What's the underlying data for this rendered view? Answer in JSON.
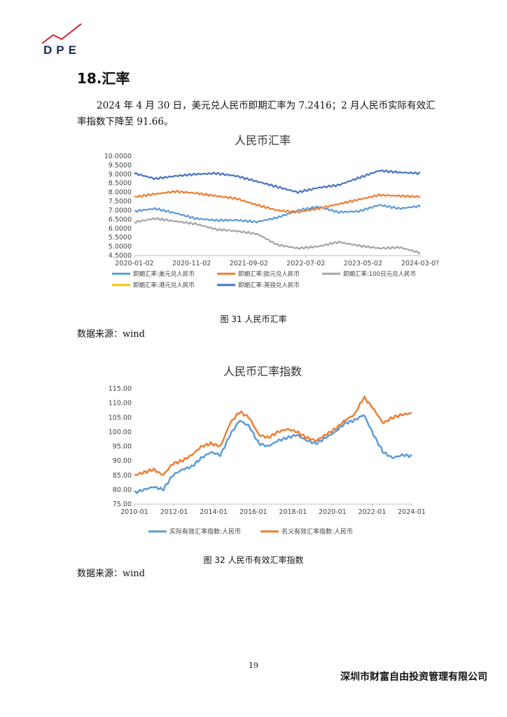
{
  "header": {
    "logo_text": "DPE"
  },
  "section": {
    "title": "18.汇率"
  },
  "paragraph": "2024 年 4 月 30 日，美元兑人民币即期汇率为 7.2416；2 月人民币实际有效汇率指数下降至 91.66。",
  "chart1": {
    "title": "人民币汇率",
    "caption": "图 31 人民币汇率",
    "source": "数据来源：wind"
  },
  "chart2": {
    "title": "人民币汇率指数",
    "caption": "图 32 人民币有效汇率指数",
    "source": "数据来源：wind"
  },
  "footer": {
    "page_number": "19",
    "company": "深圳市财富自由投资管理有限公司"
  },
  "chart_data": [
    {
      "type": "line",
      "title": "人民币汇率",
      "x_ticks": [
        "2020-01-02",
        "2020-11-02",
        "2021-09-02",
        "2022-07-02",
        "2023-05-02",
        "2024-03-0?"
      ],
      "y_ticks": [
        "10.0000",
        "9.5000",
        "9.0000",
        "8.5000",
        "8.0000",
        "7.5000",
        "7.0000",
        "6.5000",
        "6.0000",
        "5.5000",
        "5.0000",
        "4.5000"
      ],
      "ylim": [
        4.5,
        10.0
      ],
      "x_dates": [
        "2020-01",
        "2020-05",
        "2020-09",
        "2021-01",
        "2021-05",
        "2021-09",
        "2022-01",
        "2022-05",
        "2022-09",
        "2022-11",
        "2023-01",
        "2023-05",
        "2023-09",
        "2024-01",
        "2024-04"
      ],
      "series": [
        {
          "name": "即期汇率:美元兑人民币",
          "color": "#5b9bd5",
          "values": [
            6.95,
            7.1,
            6.85,
            6.55,
            6.45,
            6.46,
            6.36,
            6.6,
            7.0,
            7.2,
            6.9,
            6.95,
            7.3,
            7.1,
            7.24
          ]
        },
        {
          "name": "即期汇率:欧元兑人民币",
          "color": "#ed7d31",
          "values": [
            7.75,
            7.9,
            8.05,
            7.95,
            7.8,
            7.65,
            7.3,
            7.0,
            6.9,
            7.1,
            7.35,
            7.6,
            7.85,
            7.8,
            7.75
          ]
        },
        {
          "name": "即期汇率:100日元兑人民币",
          "color": "#a5a5a5",
          "values": [
            6.35,
            6.55,
            6.4,
            6.25,
            5.95,
            5.85,
            5.7,
            5.1,
            4.9,
            5.0,
            5.25,
            5.05,
            4.9,
            4.95,
            4.65
          ]
        },
        {
          "name": "即期汇率:港元兑人民币",
          "color": "#ffc000",
          "values": []
        },
        {
          "name": "即期汇率:英镑兑人民币",
          "color": "#4472c4",
          "values": [
            9.05,
            8.75,
            8.9,
            9.0,
            9.05,
            8.9,
            8.6,
            8.3,
            8.0,
            8.25,
            8.4,
            8.8,
            9.2,
            9.1,
            9.05
          ]
        }
      ]
    },
    {
      "type": "line",
      "title": "人民币汇率指数",
      "x_ticks": [
        "2010-01",
        "2012-01",
        "2014-01",
        "2016-01",
        "2018-01",
        "2020-01",
        "2022-01",
        "2024-01"
      ],
      "y_ticks": [
        "115.00",
        "110.00",
        "105.00",
        "100.00",
        "95.00",
        "90.00",
        "85.00",
        "80.00",
        "75.00"
      ],
      "ylim": [
        75,
        115
      ],
      "x_dates": [
        "2010-01",
        "2010-07",
        "2011-01",
        "2011-07",
        "2012-01",
        "2012-07",
        "2013-01",
        "2013-07",
        "2014-01",
        "2014-07",
        "2015-01",
        "2015-07",
        "2016-01",
        "2016-07",
        "2017-01",
        "2017-07",
        "2018-01",
        "2018-07",
        "2019-01",
        "2019-07",
        "2020-01",
        "2020-07",
        "2021-01",
        "2021-07",
        "2022-01",
        "2022-07",
        "2023-01",
        "2023-07",
        "2024-01",
        "2024-02"
      ],
      "series": [
        {
          "name": "实际有效汇率指数:人民币",
          "color": "#5b9bd5",
          "values": [
            79,
            80,
            81,
            80,
            85,
            87,
            88,
            91,
            93,
            92,
            99,
            104,
            102,
            96,
            95,
            97,
            98,
            99,
            97,
            96,
            98,
            100,
            103,
            104,
            106,
            99,
            93,
            91,
            92,
            91.66
          ]
        },
        {
          "name": "名义有效汇率指数:人民币",
          "color": "#ed7d31",
          "values": [
            85,
            86,
            87,
            85,
            89,
            90,
            92,
            95,
            96,
            95,
            103,
            107,
            105,
            99,
            98,
            100,
            101,
            100,
            98,
            97,
            99,
            101,
            104,
            106,
            112,
            108,
            103,
            105,
            106,
            106.5
          ]
        }
      ]
    }
  ]
}
